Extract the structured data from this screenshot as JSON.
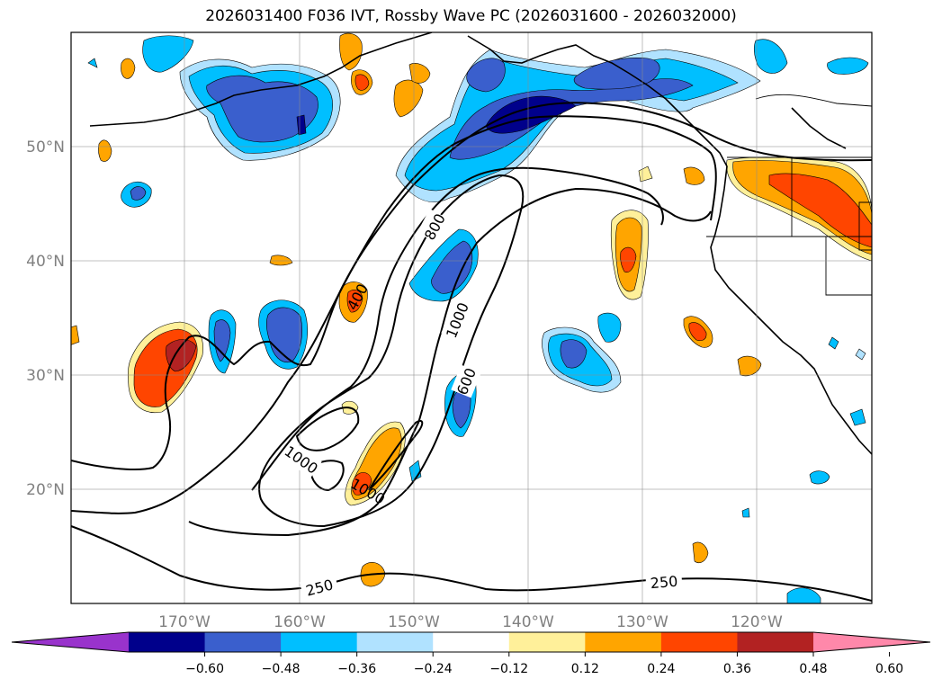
{
  "title": "2026031400 F036 IVT, Rossby Wave PC (2026031600 - 2026032000)",
  "map": {
    "lon_range": [
      -180,
      -110
    ],
    "lat_range": [
      10,
      60
    ],
    "lat_labels": [
      "50°N",
      "40°N",
      "30°N",
      "20°N"
    ],
    "lat_values": [
      50,
      40,
      30,
      20
    ],
    "lon_labels": [
      "170°W",
      "160°W",
      "150°W",
      "140°W",
      "130°W",
      "120°W"
    ],
    "lon_values": [
      -170,
      -160,
      -150,
      -140,
      -130,
      -120
    ],
    "grid": true
  },
  "contour_labels": [
    "800",
    "400",
    "1000",
    "600",
    "1000",
    "1000",
    "250",
    "250"
  ],
  "colorbar": {
    "extend": "both",
    "colors": [
      "#9933cc",
      "#00008b",
      "#3a5fcd",
      "#00bfff",
      "#b0e2ff",
      "#ffffff",
      "#fff09a",
      "#ffa500",
      "#ff4500",
      "#b22222",
      "#ff88aa"
    ],
    "ticks": [
      "−0.60",
      "−0.48",
      "−0.36",
      "−0.24",
      "−0.12",
      "0.12",
      "0.24",
      "0.36",
      "0.48",
      "0.60"
    ]
  }
}
